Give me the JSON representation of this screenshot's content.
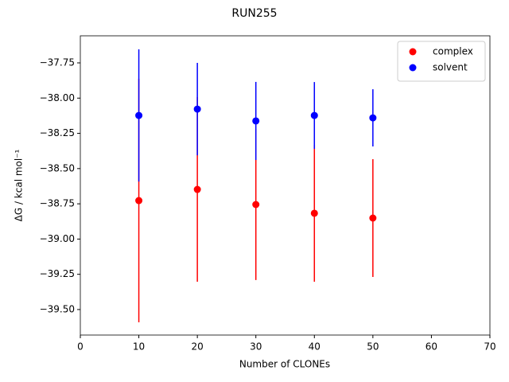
{
  "chart_data": {
    "type": "scatter",
    "title": "RUN255",
    "x_label": "Number of CLONEs",
    "y_label": "ΔG / kcal mol⁻¹",
    "xlim": [
      0,
      70
    ],
    "xticks": [
      0,
      10,
      20,
      30,
      40,
      50,
      60,
      70
    ],
    "ylim": [
      -39.681,
      -37.558
    ],
    "yticks": [
      {
        "value": -37.75,
        "label": "−37.75"
      },
      {
        "value": -38.0,
        "label": "−38.00"
      },
      {
        "value": -38.25,
        "label": "−38.25"
      },
      {
        "value": -38.5,
        "label": "−38.50"
      },
      {
        "value": -38.75,
        "label": "−38.75"
      },
      {
        "value": -39.0,
        "label": "−39.00"
      },
      {
        "value": -39.25,
        "label": "−39.25"
      },
      {
        "value": -39.5,
        "label": "−39.50"
      }
    ],
    "legend": "upper right",
    "series": [
      {
        "name": "complex",
        "color": "#ff0000",
        "x": [
          10,
          20,
          30,
          40,
          50
        ],
        "values": [
          -38.727,
          -38.648,
          -38.755,
          -38.817,
          -38.851
        ],
        "errors": [
          0.864,
          0.655,
          0.536,
          0.486,
          0.418
        ]
      },
      {
        "name": "solvent",
        "color": "#0000ff",
        "x": [
          10,
          20,
          30,
          40,
          50
        ],
        "values": [
          -38.123,
          -38.078,
          -38.162,
          -38.123,
          -38.14
        ],
        "errors": [
          0.469,
          0.328,
          0.277,
          0.237,
          0.203
        ]
      }
    ]
  }
}
